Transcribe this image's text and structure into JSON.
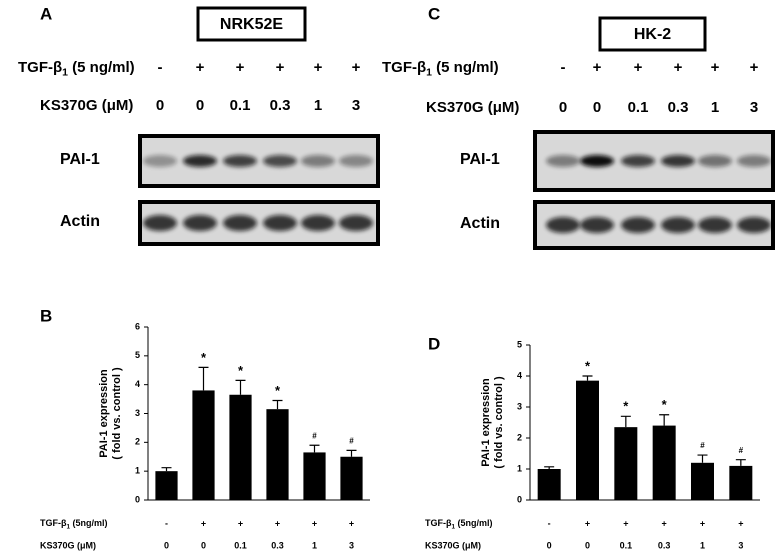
{
  "blots": [
    {
      "panel_label": "A",
      "cell_line": "NRK52E",
      "tgf_label": {
        "main": "TGF-β",
        "sub": "1",
        "unit": " (5 ng/ml)"
      },
      "tgf_signs": [
        "-",
        "+",
        "+",
        "+",
        "+",
        "+"
      ],
      "ks_label": "KS370G (μM)",
      "ks_doses": [
        "0",
        "0",
        "0.1",
        "0.3",
        "1",
        "3"
      ],
      "rows": [
        "PAI-1",
        "Actin"
      ]
    },
    {
      "panel_label": "C",
      "cell_line": "HK-2",
      "tgf_label": {
        "main": "TGF-β",
        "sub": "1",
        "unit": " (5 ng/ml)"
      },
      "tgf_signs": [
        "-",
        "+",
        "+",
        "+",
        "+",
        "+"
      ],
      "ks_label": "KS370G (μM)",
      "ks_doses": [
        "0",
        "0",
        "0.1",
        "0.3",
        "1",
        "3"
      ],
      "rows": [
        "PAI-1",
        "Actin"
      ]
    }
  ],
  "chart_data": [
    {
      "type": "bar",
      "panel_label": "B",
      "ylabel": [
        "PAI-1 expression",
        "( fold vs. control )"
      ],
      "categories": [
        "0",
        "0",
        "0.1",
        "0.3",
        "1",
        "3"
      ],
      "category_label": "KS370G (μM)",
      "tgf_label": {
        "main": "TGF-β",
        "sub": "1",
        "unit": " (5ng/ml)"
      },
      "tgf_signs": [
        "-",
        "+",
        "+",
        "+",
        "+",
        "+"
      ],
      "values": [
        1.0,
        3.8,
        3.65,
        3.15,
        1.65,
        1.5
      ],
      "errors": [
        0.12,
        0.8,
        0.5,
        0.3,
        0.25,
        0.22
      ],
      "markers": [
        null,
        "*",
        "*",
        "*",
        "#",
        "#"
      ],
      "color": "#000000",
      "ylim": [
        0,
        6
      ],
      "yticks": [
        0,
        1,
        2,
        3,
        4,
        5,
        6
      ]
    },
    {
      "type": "bar",
      "panel_label": "D",
      "ylabel": [
        "PAI-1 expression",
        "( fold vs. control )"
      ],
      "categories": [
        "0",
        "0",
        "0.1",
        "0.3",
        "1",
        "3"
      ],
      "category_label": "KS370G (μM)",
      "tgf_label": {
        "main": "TGF-β",
        "sub": "1",
        "unit": " (5ng/ml)"
      },
      "tgf_signs": [
        "-",
        "+",
        "+",
        "+",
        "+",
        "+"
      ],
      "values": [
        1.0,
        3.85,
        2.35,
        2.4,
        1.2,
        1.1
      ],
      "errors": [
        0.07,
        0.15,
        0.35,
        0.35,
        0.25,
        0.2
      ],
      "markers": [
        null,
        "*",
        "*",
        "*",
        "#",
        "#"
      ],
      "color": "#000000",
      "ylim": [
        0,
        5
      ],
      "yticks": [
        0,
        1,
        2,
        3,
        4,
        5
      ]
    }
  ]
}
